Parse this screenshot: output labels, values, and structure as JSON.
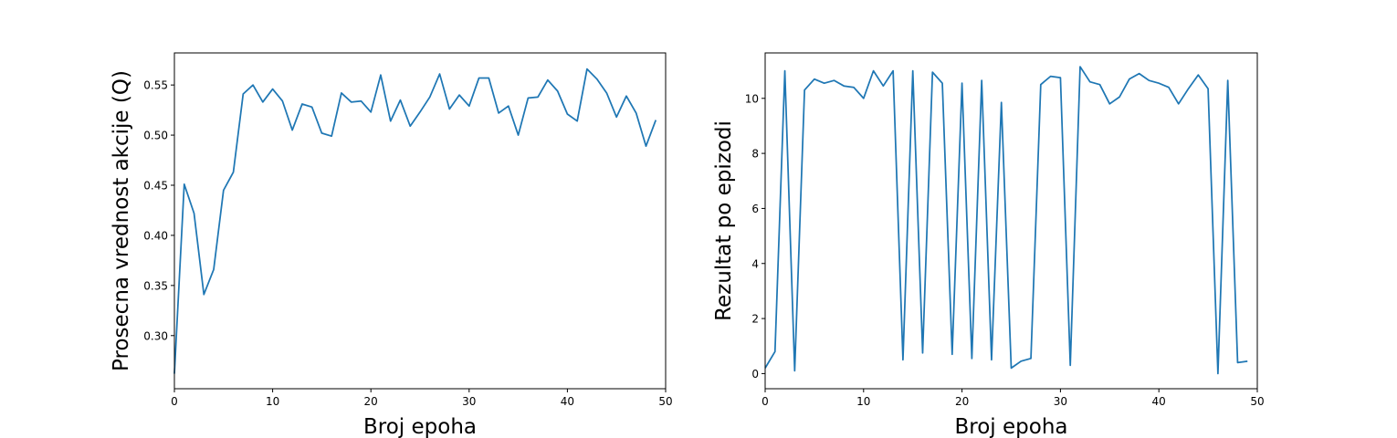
{
  "chart_data": [
    {
      "type": "line",
      "xlabel": "Broj epoha",
      "ylabel": "Prosecna vrednost akcije (Q)",
      "xlim": [
        0,
        50
      ],
      "ylim": [
        0.247,
        0.582
      ],
      "xticks": [
        0,
        10,
        20,
        30,
        40,
        50
      ],
      "yticks": [
        0.3,
        0.35,
        0.4,
        0.45,
        0.5,
        0.55
      ],
      "ytick_labels": [
        "0.30",
        "0.35",
        "0.40",
        "0.45",
        "0.50",
        "0.55"
      ],
      "grid": false,
      "color": "#1f77b4",
      "series": [
        {
          "x": [
            0,
            1,
            2,
            3,
            4,
            5,
            6,
            7,
            8,
            9,
            10,
            11,
            12,
            13,
            14,
            15,
            16,
            17,
            18,
            19,
            20,
            21,
            22,
            23,
            24,
            25,
            26,
            27,
            28,
            29,
            30,
            31,
            32,
            33,
            34,
            35,
            36,
            37,
            38,
            39,
            40,
            41,
            42,
            43,
            44,
            45,
            46,
            47,
            48,
            49
          ],
          "values": [
            0.262,
            0.451,
            0.422,
            0.341,
            0.366,
            0.445,
            0.463,
            0.541,
            0.55,
            0.533,
            0.546,
            0.534,
            0.505,
            0.531,
            0.528,
            0.502,
            0.499,
            0.542,
            0.533,
            0.534,
            0.523,
            0.56,
            0.514,
            0.535,
            0.509,
            0.523,
            0.538,
            0.561,
            0.526,
            0.54,
            0.529,
            0.557,
            0.557,
            0.522,
            0.529,
            0.5,
            0.537,
            0.538,
            0.555,
            0.544,
            0.521,
            0.514,
            0.566,
            0.556,
            0.542,
            0.518,
            0.539,
            0.522,
            0.489,
            0.515
          ]
        }
      ]
    },
    {
      "type": "line",
      "xlabel": "Broj epoha",
      "ylabel": "Rezultat po epizodi",
      "xlim": [
        0,
        50
      ],
      "ylim": [
        -0.55,
        11.65
      ],
      "xticks": [
        0,
        10,
        20,
        30,
        40,
        50
      ],
      "yticks": [
        0,
        2,
        4,
        6,
        8,
        10
      ],
      "ytick_labels": [
        "0",
        "2",
        "4",
        "6",
        "8",
        "10"
      ],
      "grid": false,
      "color": "#1f77b4",
      "series": [
        {
          "x": [
            0,
            1,
            2,
            3,
            4,
            5,
            6,
            7,
            8,
            9,
            10,
            11,
            12,
            13,
            14,
            15,
            16,
            17,
            18,
            19,
            20,
            21,
            22,
            23,
            24,
            25,
            26,
            27,
            28,
            29,
            30,
            31,
            32,
            33,
            34,
            35,
            36,
            37,
            38,
            39,
            40,
            41,
            42,
            43,
            44,
            45,
            46,
            47,
            48,
            49
          ],
          "values": [
            0.2,
            0.8,
            11.0,
            0.1,
            10.3,
            10.7,
            10.55,
            10.65,
            10.45,
            10.4,
            10.0,
            11.0,
            10.45,
            11.0,
            0.5,
            11.0,
            0.75,
            10.95,
            10.55,
            0.7,
            10.55,
            0.55,
            10.65,
            0.5,
            9.85,
            0.2,
            0.45,
            0.55,
            10.5,
            10.8,
            10.75,
            0.3,
            11.15,
            10.6,
            10.5,
            9.8,
            10.05,
            10.7,
            10.9,
            10.65,
            10.55,
            10.4,
            9.8,
            10.35,
            10.85,
            10.35,
            0.0,
            10.65,
            0.4,
            0.45
          ]
        }
      ]
    }
  ]
}
